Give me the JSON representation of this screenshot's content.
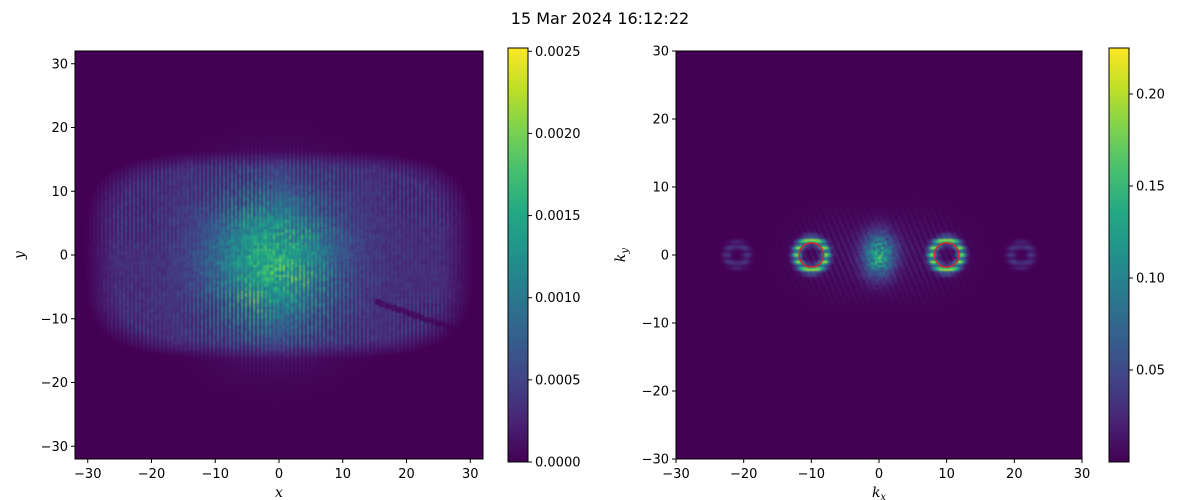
{
  "figure": {
    "suptitle": "15 Mar 2024 16:12:22"
  },
  "chart_data": [
    {
      "type": "heatmap",
      "title": "",
      "xlabel": "x",
      "ylabel": "y",
      "xlim": [
        -32,
        32
      ],
      "ylim": [
        -32,
        32
      ],
      "xticks": [
        -30,
        -20,
        -10,
        0,
        10,
        20,
        30
      ],
      "yticks": [
        -30,
        -20,
        -10,
        0,
        10,
        20,
        30
      ],
      "colormap": "viridis",
      "colorbar": {
        "min": 0.0,
        "max": 0.00252,
        "ticks": [
          0.0,
          0.0005,
          0.001,
          0.0015,
          0.002,
          0.0025
        ],
        "tick_labels": [
          "0.0000",
          "0.0005",
          "0.0010",
          "0.0015",
          "0.0020",
          "0.0025"
        ]
      },
      "features": [
        {
          "kind": "elliptical-envelope",
          "cx": 0,
          "cy": 0,
          "rx": 29,
          "ry": 15.5,
          "level": 0.00045
        },
        {
          "kind": "bright-core",
          "cx": -1,
          "cy": -1,
          "rx": 11,
          "ry": 11.5,
          "level": 0.0017
        },
        {
          "kind": "vertical-fringes",
          "wavenumber_x": 10
        }
      ]
    },
    {
      "type": "heatmap",
      "title": "",
      "xlabel": "kx",
      "ylabel": "ky",
      "xlim": [
        -30,
        30
      ],
      "ylim": [
        -30,
        30
      ],
      "xticks": [
        -30,
        -20,
        -10,
        0,
        10,
        20,
        30
      ],
      "yticks": [
        -30,
        -20,
        -10,
        0,
        10,
        20,
        30
      ],
      "colormap": "viridis",
      "colorbar": {
        "min": 0.0,
        "max": 0.225,
        "ticks": [
          0.05,
          0.1,
          0.15,
          0.2
        ],
        "tick_labels": [
          "0.05",
          "0.10",
          "0.15",
          "0.20"
        ]
      },
      "features": [
        {
          "kind": "ring",
          "cx": -10,
          "cy": 0,
          "r": 2.2,
          "level": 0.2
        },
        {
          "kind": "ring",
          "cx": 10,
          "cy": 0,
          "r": 2.2,
          "level": 0.2
        },
        {
          "kind": "blob",
          "cx": 0,
          "cy": 0,
          "rx": 2.5,
          "ry": 3.5,
          "level": 0.17
        },
        {
          "kind": "ring",
          "cx": -21,
          "cy": 0,
          "r": 1.5,
          "level": 0.04
        },
        {
          "kind": "ring",
          "cx": 21,
          "cy": 0,
          "r": 1.5,
          "level": 0.04
        }
      ],
      "markers": [
        {
          "shape": "circle",
          "cx": -10,
          "cy": 0,
          "r": 1.8,
          "color": "#d62728"
        },
        {
          "shape": "circle",
          "cx": 10,
          "cy": 0,
          "r": 1.8,
          "color": "#d62728"
        }
      ]
    }
  ]
}
